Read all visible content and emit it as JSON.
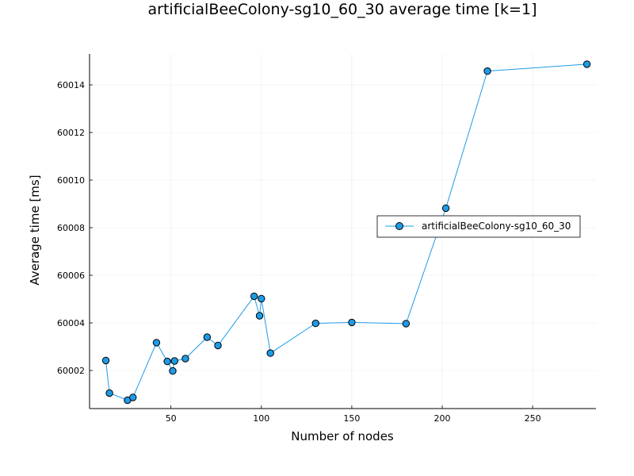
{
  "chart_data": {
    "type": "line",
    "title": "artificialBeeColony-sg10_60_30 average time [k=1]",
    "xlabel": "Number of nodes",
    "ylabel": "Average time [ms]",
    "xlim": [
      5,
      285
    ],
    "ylim": [
      60000.4,
      60015.3
    ],
    "xticks": [
      50,
      100,
      150,
      200,
      250
    ],
    "yticks": [
      60002,
      60004,
      60006,
      60008,
      60010,
      60012,
      60014
    ],
    "grid": true,
    "legend_position": "right",
    "series": [
      {
        "name": "artificialBeeColony-sg10_60_30",
        "color": "#1f9be6",
        "marker": "circle",
        "x": [
          14,
          16,
          26,
          29,
          42,
          48,
          51,
          52,
          58,
          70,
          76,
          96,
          99,
          100,
          105,
          130,
          150,
          180,
          202,
          225,
          280
        ],
        "y": [
          60002.42,
          60001.05,
          60000.75,
          60000.87,
          60003.17,
          60002.38,
          60001.98,
          60002.4,
          60002.5,
          60003.4,
          60003.05,
          60005.12,
          60004.3,
          60005.02,
          60002.73,
          60003.98,
          60004.02,
          60003.97,
          60008.82,
          60014.58,
          60014.87
        ]
      }
    ]
  }
}
